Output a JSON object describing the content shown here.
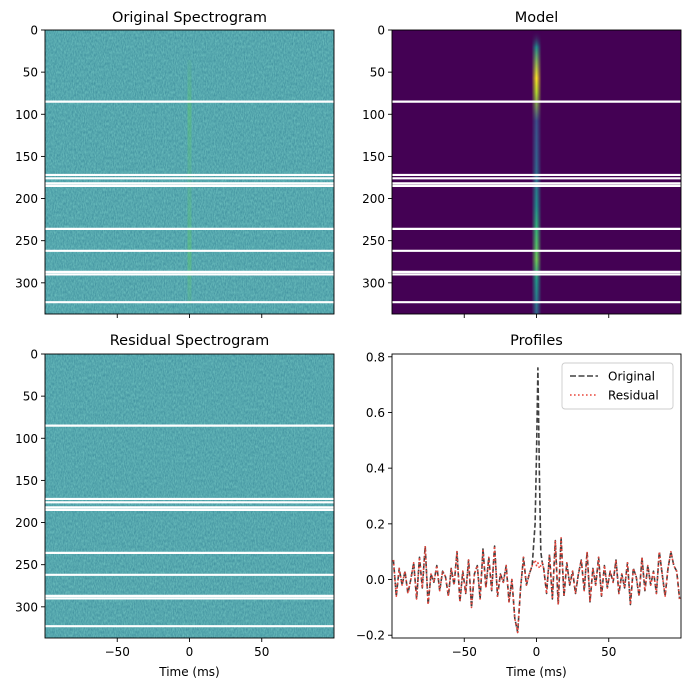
{
  "chart_data": [
    {
      "type": "heatmap",
      "title": "Original Spectrogram",
      "colormap": "viridis",
      "xlim": [
        -100,
        100
      ],
      "ylim": [
        337,
        0
      ],
      "yticks": [
        "0",
        "50",
        "100",
        "150",
        "200",
        "250",
        "300"
      ],
      "xticks": [],
      "xlabel": "",
      "burst_time_ms": 0,
      "masked_channels": [
        85,
        172,
        176,
        182,
        185,
        236,
        262,
        287,
        290,
        323
      ],
      "feature": "faint vertical burst near t = 0 ms on noisy background"
    },
    {
      "type": "heatmap",
      "title": "Model",
      "colormap": "viridis",
      "xlim": [
        -100,
        100
      ],
      "ylim": [
        337,
        0
      ],
      "yticks": [
        "0",
        "50",
        "100",
        "150",
        "200",
        "250",
        "300"
      ],
      "xticks": [],
      "xlabel": "",
      "burst_time_ms": 0,
      "masked_channels": [
        85,
        172,
        176,
        182,
        185,
        236,
        262,
        287,
        290,
        323
      ],
      "peak_channels": [
        70,
        275
      ],
      "feature": "narrow modelled burst at t = 0 ms, brightest near channels 70 and 275"
    },
    {
      "type": "heatmap",
      "title": "Residual Spectrogram",
      "colormap": "viridis",
      "xlim": [
        -100,
        100
      ],
      "ylim": [
        337,
        0
      ],
      "yticks": [
        "0",
        "50",
        "100",
        "150",
        "200",
        "250",
        "300"
      ],
      "xticks": [
        "−50",
        "0",
        "50"
      ],
      "xlabel": "Time (ms)",
      "masked_channels": [
        85,
        172,
        176,
        182,
        185,
        236,
        262,
        287,
        290,
        323
      ],
      "feature": "noise only, burst removed"
    },
    {
      "type": "line",
      "title": "Profiles",
      "xlabel": "Time (ms)",
      "xlim": [
        -100,
        100
      ],
      "ylim": [
        -0.21,
        0.81
      ],
      "yticks": [
        "−0.2",
        "0.0",
        "0.2",
        "0.4",
        "0.6",
        "0.8"
      ],
      "xticks": [
        "−50",
        "0",
        "50"
      ],
      "legend": "top-right",
      "x": [
        -99,
        -97,
        -95,
        -93,
        -91,
        -89,
        -87,
        -85,
        -83,
        -81,
        -79,
        -77,
        -75,
        -73,
        -71,
        -69,
        -67,
        -65,
        -63,
        -61,
        -59,
        -57,
        -55,
        -53,
        -51,
        -49,
        -47,
        -45,
        -43,
        -41,
        -39,
        -37,
        -35,
        -33,
        -31,
        -29,
        -27,
        -25,
        -23,
        -21,
        -19,
        -17,
        -15,
        -13,
        -11,
        -9,
        -7,
        -5,
        -3,
        -1,
        0,
        1,
        2,
        3,
        4,
        5,
        7,
        9,
        11,
        13,
        15,
        17,
        19,
        21,
        23,
        25,
        27,
        29,
        31,
        33,
        35,
        37,
        39,
        41,
        43,
        45,
        47,
        49,
        51,
        53,
        55,
        57,
        59,
        61,
        63,
        65,
        67,
        69,
        71,
        73,
        75,
        77,
        79,
        81,
        83,
        85,
        87,
        89,
        91,
        93,
        95,
        97,
        99
      ],
      "series": [
        {
          "name": "Original",
          "color": "#404040",
          "style": "dashed",
          "values": [
            0.07,
            -0.06,
            0.04,
            -0.02,
            0.03,
            -0.05,
            0.0,
            0.06,
            -0.07,
            0.08,
            -0.03,
            0.12,
            -0.09,
            0.02,
            -0.01,
            0.05,
            -0.04,
            0.03,
            0.01,
            -0.06,
            0.04,
            -0.02,
            0.1,
            -0.08,
            0.03,
            -0.05,
            0.07,
            -0.1,
            0.02,
            0.05,
            -0.07,
            0.11,
            -0.03,
            0.08,
            -0.04,
            0.12,
            -0.06,
            0.02,
            -0.01,
            0.05,
            -0.08,
            0.0,
            -0.14,
            -0.19,
            -0.03,
            0.08,
            -0.02,
            0.02,
            0.05,
            0.2,
            0.45,
            0.76,
            0.38,
            0.1,
            0.06,
            0.04,
            -0.05,
            0.09,
            -0.07,
            0.14,
            -0.09,
            0.15,
            -0.06,
            0.06,
            -0.02,
            0.03,
            -0.05,
            0.02,
            0.07,
            -0.04,
            0.1,
            -0.08,
            0.04,
            -0.02,
            0.08,
            -0.06,
            0.05,
            -0.03,
            0.03,
            -0.01,
            0.07,
            -0.05,
            0.02,
            -0.03,
            0.06,
            -0.09,
            0.04,
            0.01,
            -0.06,
            0.08,
            -0.04,
            0.05,
            -0.02,
            0.03,
            -0.05,
            0.1,
            0.02,
            -0.06,
            0.04,
            0.1,
            0.05,
            0.03,
            -0.07
          ]
        },
        {
          "name": "Residual",
          "color": "#e8463c",
          "style": "dotted",
          "values": [
            0.07,
            -0.06,
            0.04,
            -0.02,
            0.03,
            -0.05,
            0.0,
            0.06,
            -0.07,
            0.08,
            -0.03,
            0.12,
            -0.09,
            0.02,
            -0.01,
            0.05,
            -0.04,
            0.03,
            0.01,
            -0.06,
            0.04,
            -0.02,
            0.1,
            -0.08,
            0.03,
            -0.05,
            0.07,
            -0.1,
            0.02,
            0.05,
            -0.07,
            0.11,
            -0.03,
            0.08,
            -0.04,
            0.12,
            -0.06,
            0.02,
            -0.01,
            0.05,
            -0.08,
            0.0,
            -0.14,
            -0.19,
            -0.03,
            0.08,
            -0.02,
            0.02,
            0.05,
            0.07,
            0.05,
            0.06,
            0.04,
            0.05,
            0.06,
            0.04,
            -0.05,
            0.09,
            -0.07,
            0.14,
            -0.09,
            0.15,
            -0.06,
            0.06,
            -0.02,
            0.03,
            -0.05,
            0.02,
            0.07,
            -0.04,
            0.1,
            -0.08,
            0.04,
            -0.02,
            0.08,
            -0.06,
            0.05,
            -0.03,
            0.03,
            -0.01,
            0.07,
            -0.05,
            0.02,
            -0.03,
            0.06,
            -0.09,
            0.04,
            0.01,
            -0.06,
            0.08,
            -0.04,
            0.05,
            -0.02,
            0.03,
            -0.05,
            0.1,
            0.02,
            -0.06,
            0.04,
            0.1,
            0.05,
            0.03,
            -0.07
          ]
        }
      ]
    }
  ]
}
